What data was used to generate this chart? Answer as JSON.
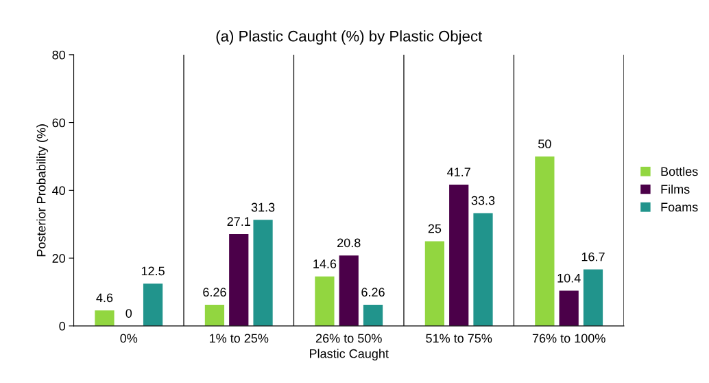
{
  "chart_data": {
    "type": "bar",
    "title": "(a) Plastic Caught (%) by Plastic Object",
    "xlabel": "Plastic Caught",
    "ylabel": "Posterior Probability (%)",
    "categories": [
      "0%",
      "1% to 25%",
      "26% to 50%",
      "51% to 75%",
      "76% to 100%"
    ],
    "series": [
      {
        "name": "Bottles",
        "color": "#92d640",
        "values": [
          4.6,
          6.26,
          14.6,
          25,
          50
        ]
      },
      {
        "name": "Films",
        "color": "#4b0049",
        "values": [
          0,
          27.1,
          20.8,
          41.7,
          10.4
        ]
      },
      {
        "name": "Foams",
        "color": "#21948c",
        "values": [
          12.5,
          31.3,
          6.26,
          33.3,
          16.7
        ]
      }
    ],
    "ylim": [
      0,
      80
    ],
    "yticks": [
      0,
      20,
      40,
      60,
      80
    ],
    "grid": "x",
    "legend": "right",
    "data_labels": true
  }
}
